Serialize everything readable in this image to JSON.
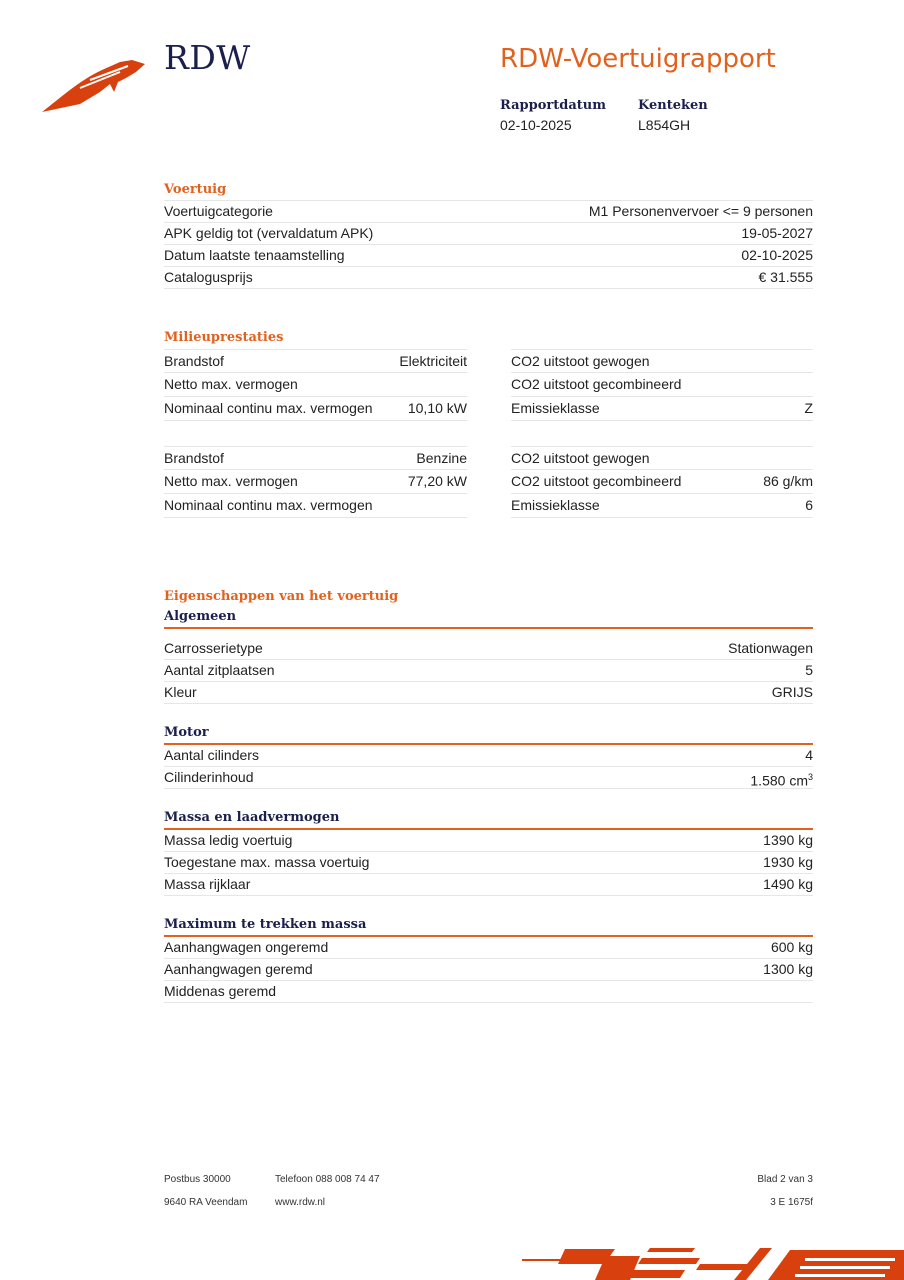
{
  "header": {
    "logo_text": "RDW",
    "title": "RDW-Voertuigrapport",
    "meta": [
      {
        "label": "Rapportdatum",
        "value": "02-10-2025"
      },
      {
        "label": "Kenteken",
        "value": "L854GH"
      }
    ]
  },
  "voertuig": {
    "heading": "Voertuig",
    "rows": [
      {
        "label": "Voertuigcategorie",
        "value": "M1 Personenvervoer <= 9 personen"
      },
      {
        "label": "APK geldig tot (vervaldatum APK)",
        "value": "19-05-2027"
      },
      {
        "label": "Datum laatste tenaamstelling",
        "value": "02-10-2025"
      },
      {
        "label": "Catalogusprijs",
        "value": "€ 31.555"
      }
    ]
  },
  "milieu": {
    "heading": "Milieuprestaties",
    "blocks": [
      [
        {
          "l1": "Brandstof",
          "v1": "Elektriciteit",
          "l2": "CO2 uitstoot gewogen",
          "v2": ""
        },
        {
          "l1": "Netto max. vermogen",
          "v1": "",
          "l2": "CO2 uitstoot gecombineerd",
          "v2": ""
        },
        {
          "l1": "Nominaal continu max. vermogen",
          "v1": "10,10 kW",
          "l2": "Emissieklasse",
          "v2": "Z"
        }
      ],
      [
        {
          "l1": "Brandstof",
          "v1": "Benzine",
          "l2": "CO2 uitstoot gewogen",
          "v2": ""
        },
        {
          "l1": "Netto max. vermogen",
          "v1": "77,20 kW",
          "l2": "CO2 uitstoot gecombineerd",
          "v2": "86 g/km"
        },
        {
          "l1": "Nominaal continu max. vermogen",
          "v1": "",
          "l2": "Emissieklasse",
          "v2": "6"
        }
      ]
    ]
  },
  "eigenschappen": {
    "heading": "Eigenschappen van het voertuig",
    "groups": [
      {
        "title": "Algemeen",
        "rows": [
          {
            "label": "Carrosserietype",
            "value": "Stationwagen"
          },
          {
            "label": "Aantal zitplaatsen",
            "value": "5"
          },
          {
            "label": "Kleur",
            "value": "GRIJS"
          }
        ]
      },
      {
        "title": "Motor",
        "rows": [
          {
            "label": "Aantal cilinders",
            "value": "4"
          },
          {
            "label": "Cilinderinhoud",
            "value": "1.580 cm",
            "sup": "3"
          }
        ]
      },
      {
        "title": "Massa en laadvermogen",
        "rows": [
          {
            "label": "Massa ledig voertuig",
            "value": "1390 kg"
          },
          {
            "label": "Toegestane max. massa voertuig",
            "value": "1930 kg"
          },
          {
            "label": "Massa rijklaar",
            "value": "1490 kg"
          }
        ]
      },
      {
        "title": "Maximum te trekken massa",
        "rows": [
          {
            "label": "Aanhangwagen ongeremd",
            "value": "600 kg"
          },
          {
            "label": "Aanhangwagen geremd",
            "value": "1300 kg"
          },
          {
            "label": "Middenas geremd",
            "value": ""
          }
        ]
      }
    ]
  },
  "footer": {
    "postbus": "Postbus 30000",
    "telefoon": "Telefoon 088 008 74 47",
    "blad": "Blad 2 van 3",
    "adres": "9640 RA Veendam",
    "website": "www.rdw.nl",
    "code": "3 E 1675f"
  },
  "colors": {
    "accent": "#e0621f",
    "navy": "#1b1f4b",
    "logo_red": "#d8400e"
  }
}
